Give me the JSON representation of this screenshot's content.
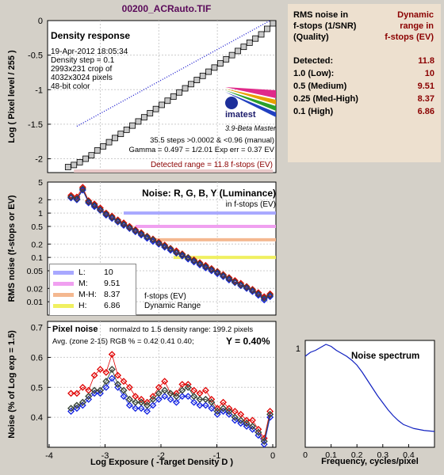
{
  "file_title": "00200_ACRauto.TIF",
  "density": {
    "title": "Density response",
    "info": [
      "19-Apr-2012 18:05:34",
      "Density step = 0.1",
      "2993x231 crop of",
      "4032x3024 pixels",
      "48-bit color"
    ],
    "logo_text": "imatest",
    "version_text": "3.9-Beta  Master",
    "stats": [
      "35.5 steps >0.0002 & <0.96 (manual)",
      "Gamma = 0.497 = 1/2.01  Exp err = 0.37 EV"
    ],
    "detected_range": "Detected range = 11.8 f-stops (EV)",
    "ylabel": "Log ( Pixel level / 255 )",
    "yticks": [
      "0",
      "-0.5",
      "-1",
      "-1.5",
      "-2"
    ]
  },
  "noise_ev": {
    "title": "Noise: R, G, B, Y (Luminance)",
    "subtitle": "in f-stops (EV)",
    "ylabel": "RMS noise (f-stops or EV)",
    "yticks": [
      "5",
      "2",
      "1",
      "0.5",
      "0.2",
      "0.1",
      "0.05",
      "0.02",
      "0.01"
    ],
    "legend": [
      {
        "label": "L:",
        "value": "10",
        "color": "#a8a8ff"
      },
      {
        "label": "M:",
        "value": "9.51",
        "color": "#f0a0f0"
      },
      {
        "label": "M-H:",
        "value": "8.37",
        "color": "#f4b890"
      },
      {
        "label": "H:",
        "value": "6.86",
        "color": "#f0f060"
      }
    ],
    "legend_note": [
      "f-stops (EV)",
      "Dynamic Range"
    ]
  },
  "pixel_noise": {
    "title": "Pixel noise",
    "norm_note": "normalzd to 1.5 density range: 199.2 pixels",
    "avg_note": "Avg. (zone 2-15) RGB % = 0.42  0.41  0.40;",
    "y_note": "Y = 0.40%",
    "ylabel": "Noise (% of Log exp = 1.5)",
    "xlabel": "Log Exposure ( -Target Density D )",
    "yticks": [
      "0.7",
      "0.6",
      "0.5",
      "0.4"
    ],
    "xticks": [
      "-4",
      "-3",
      "-2",
      "-1",
      "0"
    ]
  },
  "spectrum": {
    "title": "Noise spectrum",
    "xlabel": "Frequency, cycles/pixel",
    "yticks": [
      "1"
    ],
    "xticks": [
      "0",
      "0.1",
      "0.2",
      "0.3",
      "0.4"
    ]
  },
  "side_panel": {
    "header_left": [
      "RMS noise in",
      "f-stops (1/SNR)",
      "(Quality)"
    ],
    "header_right": [
      "Dynamic",
      "range in",
      "f-stops (EV)"
    ],
    "rows": [
      {
        "label": "Detected:",
        "value": "11.8"
      },
      {
        "label": "1.0  (Low):",
        "value": "10"
      },
      {
        "label": "0.5  (Medium)",
        "value": "9.51"
      },
      {
        "label": "0.25 (Med-High)",
        "value": "8.37"
      },
      {
        "label": "0.1  (High)",
        "value": "6.86"
      }
    ]
  },
  "chart_data": [
    {
      "type": "line",
      "title": "Density response",
      "xlabel": "Log Exposure ( -Target Density D )",
      "ylabel": "Log ( Pixel level / 255 )",
      "xlim": [
        -3.9,
        0
      ],
      "ylim": [
        -2.2,
        0
      ],
      "series": [
        {
          "x": [
            -3.55,
            -3.45,
            -3.35,
            -3.25,
            -3.15,
            -3.05,
            -2.95,
            -2.85,
            -2.75,
            -2.65,
            -2.55,
            -2.45,
            -2.35,
            -2.25,
            -2.15,
            -2.05,
            -1.95,
            -1.85,
            -1.75,
            -1.65,
            -1.55,
            -1.45,
            -1.35,
            -1.25,
            -1.15,
            -1.05,
            -0.95,
            -0.85,
            -0.75,
            -0.65,
            -0.55,
            -0.45,
            -0.35,
            -0.25,
            -0.15,
            -0.05
          ],
          "y": [
            -2.12,
            -2.09,
            -2.05,
            -2.0,
            -1.95,
            -1.88,
            -1.82,
            -1.76,
            -1.7,
            -1.64,
            -1.58,
            -1.52,
            -1.46,
            -1.4,
            -1.34,
            -1.28,
            -1.22,
            -1.16,
            -1.1,
            -1.04,
            -0.98,
            -0.92,
            -0.86,
            -0.8,
            -0.74,
            -0.68,
            -0.62,
            -0.56,
            -0.5,
            -0.44,
            -0.38,
            -0.32,
            -0.26,
            -0.2,
            -0.12,
            -0.04
          ]
        }
      ],
      "fit_line": {
        "x": [
          -3.4,
          -0.1
        ],
        "y": [
          -1.53,
          0
        ]
      }
    },
    {
      "type": "line",
      "title": "Noise: R, G, B, Y (Luminance)",
      "ylabel": "RMS noise (f-stops or EV)",
      "yscale": "log",
      "xlim": [
        -3.9,
        0
      ],
      "ylim": [
        0.005,
        5
      ],
      "x": [
        -3.5,
        -3.4,
        -3.3,
        -3.2,
        -3.1,
        -3.0,
        -2.9,
        -2.8,
        -2.7,
        -2.6,
        -2.5,
        -2.4,
        -2.3,
        -2.2,
        -2.1,
        -2.0,
        -1.9,
        -1.8,
        -1.7,
        -1.6,
        -1.5,
        -1.4,
        -1.3,
        -1.2,
        -1.1,
        -1.0,
        -0.9,
        -0.8,
        -0.7,
        -0.6,
        -0.5,
        -0.4,
        -0.3,
        -0.2,
        -0.1
      ],
      "series": [
        {
          "name": "R",
          "values": [
            2.5,
            2.3,
            3.8,
            1.9,
            1.6,
            1.3,
            1.0,
            0.85,
            0.7,
            0.6,
            0.5,
            0.42,
            0.36,
            0.3,
            0.26,
            0.22,
            0.19,
            0.16,
            0.14,
            0.12,
            0.1,
            0.088,
            0.076,
            0.066,
            0.056,
            0.048,
            0.041,
            0.035,
            0.03,
            0.026,
            0.022,
            0.019,
            0.016,
            0.013,
            0.015
          ]
        },
        {
          "name": "G",
          "values": [
            2.3,
            2.1,
            3.5,
            1.8,
            1.5,
            1.2,
            0.95,
            0.8,
            0.66,
            0.56,
            0.47,
            0.4,
            0.34,
            0.29,
            0.25,
            0.21,
            0.18,
            0.155,
            0.13,
            0.115,
            0.098,
            0.084,
            0.072,
            0.062,
            0.053,
            0.046,
            0.039,
            0.033,
            0.028,
            0.024,
            0.021,
            0.018,
            0.015,
            0.012,
            0.014
          ]
        },
        {
          "name": "B",
          "values": [
            2.2,
            2.0,
            3.3,
            1.7,
            1.4,
            1.15,
            0.9,
            0.76,
            0.63,
            0.53,
            0.45,
            0.38,
            0.32,
            0.27,
            0.23,
            0.2,
            0.17,
            0.145,
            0.125,
            0.108,
            0.092,
            0.079,
            0.068,
            0.058,
            0.05,
            0.043,
            0.037,
            0.031,
            0.027,
            0.023,
            0.02,
            0.017,
            0.014,
            0.011,
            0.013
          ]
        },
        {
          "name": "Y",
          "values": [
            2.3,
            2.1,
            3.5,
            1.8,
            1.5,
            1.2,
            0.95,
            0.8,
            0.66,
            0.56,
            0.47,
            0.4,
            0.34,
            0.29,
            0.25,
            0.21,
            0.18,
            0.155,
            0.13,
            0.115,
            0.098,
            0.084,
            0.072,
            0.062,
            0.053,
            0.046,
            0.039,
            0.033,
            0.028,
            0.024,
            0.021,
            0.018,
            0.015,
            0.012,
            0.014
          ]
        }
      ],
      "thresholds": [
        {
          "level": 1.0,
          "color": "#a8a8ff",
          "x_from": -2.6
        },
        {
          "level": 0.5,
          "color": "#f0a0f0",
          "x_from": -2.4
        },
        {
          "level": 0.25,
          "color": "#f4b890",
          "x_from": -2.15
        },
        {
          "level": 0.1,
          "color": "#f0f060",
          "x_from": -1.75
        }
      ]
    },
    {
      "type": "line",
      "title": "Pixel noise",
      "xlabel": "Log Exposure ( -Target Density D )",
      "ylabel": "Noise (% of Log exp = 1.5)",
      "xlim": [
        -3.9,
        0
      ],
      "ylim": [
        0.3,
        0.72
      ],
      "x": [
        -3.5,
        -3.4,
        -3.3,
        -3.2,
        -3.1,
        -3.0,
        -2.9,
        -2.8,
        -2.7,
        -2.6,
        -2.5,
        -2.4,
        -2.3,
        -2.2,
        -2.1,
        -2.0,
        -1.9,
        -1.8,
        -1.7,
        -1.6,
        -1.5,
        -1.4,
        -1.3,
        -1.2,
        -1.1,
        -1.0,
        -0.9,
        -0.8,
        -0.7,
        -0.6,
        -0.5,
        -0.4,
        -0.3,
        -0.2,
        -0.1
      ],
      "series": [
        {
          "name": "R",
          "values": [
            0.48,
            0.48,
            0.5,
            0.49,
            0.54,
            0.56,
            0.55,
            0.61,
            0.54,
            0.52,
            0.5,
            0.47,
            0.46,
            0.45,
            0.47,
            0.5,
            0.52,
            0.48,
            0.48,
            0.51,
            0.51,
            0.49,
            0.48,
            0.49,
            0.46,
            0.43,
            0.45,
            0.43,
            0.42,
            0.41,
            0.39,
            0.39,
            0.36,
            0.33,
            0.42
          ]
        },
        {
          "name": "G",
          "values": [
            0.43,
            0.44,
            0.45,
            0.47,
            0.49,
            0.49,
            0.52,
            0.56,
            0.51,
            0.49,
            0.46,
            0.45,
            0.45,
            0.44,
            0.46,
            0.48,
            0.49,
            0.48,
            0.47,
            0.49,
            0.5,
            0.47,
            0.46,
            0.46,
            0.45,
            0.42,
            0.43,
            0.42,
            0.4,
            0.39,
            0.38,
            0.37,
            0.35,
            0.32,
            0.41
          ]
        },
        {
          "name": "B",
          "values": [
            0.42,
            0.43,
            0.44,
            0.46,
            0.48,
            0.48,
            0.5,
            0.53,
            0.5,
            0.47,
            0.44,
            0.43,
            0.43,
            0.42,
            0.44,
            0.46,
            0.47,
            0.46,
            0.45,
            0.47,
            0.47,
            0.45,
            0.44,
            0.44,
            0.43,
            0.41,
            0.42,
            0.41,
            0.39,
            0.38,
            0.37,
            0.36,
            0.34,
            0.31,
            0.4
          ]
        },
        {
          "name": "Y",
          "values": [
            0.43,
            0.44,
            0.45,
            0.47,
            0.49,
            0.49,
            0.52,
            0.56,
            0.51,
            0.49,
            0.46,
            0.45,
            0.45,
            0.44,
            0.46,
            0.48,
            0.49,
            0.48,
            0.47,
            0.49,
            0.5,
            0.47,
            0.46,
            0.46,
            0.45,
            0.42,
            0.43,
            0.42,
            0.4,
            0.39,
            0.38,
            0.37,
            0.35,
            0.32,
            0.41
          ]
        }
      ]
    },
    {
      "type": "line",
      "title": "Noise spectrum",
      "xlabel": "Frequency, cycles/pixel",
      "xlim": [
        0,
        0.5
      ],
      "ylim": [
        0,
        1.08
      ],
      "series": [
        {
          "x": [
            0.0,
            0.02,
            0.04,
            0.06,
            0.08,
            0.1,
            0.12,
            0.14,
            0.16,
            0.18,
            0.2,
            0.22,
            0.24,
            0.26,
            0.28,
            0.3,
            0.32,
            0.34,
            0.36,
            0.38,
            0.4,
            0.42,
            0.44,
            0.46,
            0.48,
            0.5
          ],
          "y": [
            0.92,
            0.96,
            0.98,
            1.01,
            1.04,
            1.02,
            0.98,
            0.95,
            0.92,
            0.88,
            0.83,
            0.76,
            0.68,
            0.6,
            0.52,
            0.45,
            0.38,
            0.32,
            0.27,
            0.23,
            0.21,
            0.19,
            0.18,
            0.17,
            0.165,
            0.16
          ]
        }
      ]
    }
  ]
}
